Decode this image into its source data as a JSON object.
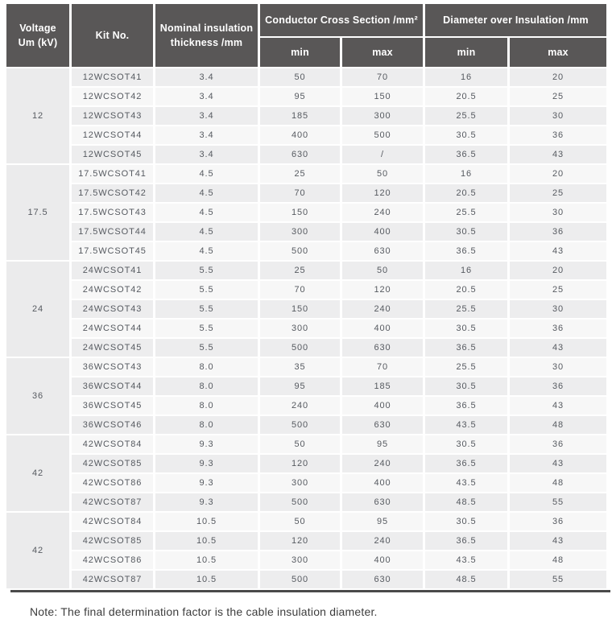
{
  "colors": {
    "header_bg": "#595757",
    "row_odd": "#ededee",
    "row_even": "#f7f7f7",
    "voltage_cell_bg": "#ebebec",
    "bottom_rule": "#4a4a4a",
    "header_text": "#ffffff",
    "cell_text": "#565a60"
  },
  "table": {
    "headers": {
      "voltage": "Voltage\nUm (kV)",
      "kit": "Kit No.",
      "nominal": "Nominal insulation\nthickness /mm",
      "ccs_group": "Conductor Cross Section /mm²",
      "dia_group": "Diameter over Insulation /mm",
      "min": "min",
      "max": "max"
    },
    "groups": [
      {
        "voltage": "12",
        "rows": [
          {
            "kit": "12WCSOT41",
            "thickness": "3.4",
            "ccs_min": "50",
            "ccs_max": "70",
            "dia_min": "16",
            "dia_max": "20"
          },
          {
            "kit": "12WCSOT42",
            "thickness": "3.4",
            "ccs_min": "95",
            "ccs_max": "150",
            "dia_min": "20.5",
            "dia_max": "25"
          },
          {
            "kit": "12WCSOT43",
            "thickness": "3.4",
            "ccs_min": "185",
            "ccs_max": "300",
            "dia_min": "25.5",
            "dia_max": "30"
          },
          {
            "kit": "12WCSOT44",
            "thickness": "3.4",
            "ccs_min": "400",
            "ccs_max": "500",
            "dia_min": "30.5",
            "dia_max": "36"
          },
          {
            "kit": "12WCSOT45",
            "thickness": "3.4",
            "ccs_min": "630",
            "ccs_max": "/",
            "dia_min": "36.5",
            "dia_max": "43"
          }
        ]
      },
      {
        "voltage": "17.5",
        "rows": [
          {
            "kit": "17.5WCSOT41",
            "thickness": "4.5",
            "ccs_min": "25",
            "ccs_max": "50",
            "dia_min": "16",
            "dia_max": "20"
          },
          {
            "kit": "17.5WCSOT42",
            "thickness": "4.5",
            "ccs_min": "70",
            "ccs_max": "120",
            "dia_min": "20.5",
            "dia_max": "25"
          },
          {
            "kit": "17.5WCSOT43",
            "thickness": "4.5",
            "ccs_min": "150",
            "ccs_max": "240",
            "dia_min": "25.5",
            "dia_max": "30"
          },
          {
            "kit": "17.5WCSOT44",
            "thickness": "4.5",
            "ccs_min": "300",
            "ccs_max": "400",
            "dia_min": "30.5",
            "dia_max": "36"
          },
          {
            "kit": "17.5WCSOT45",
            "thickness": "4.5",
            "ccs_min": "500",
            "ccs_max": "630",
            "dia_min": "36.5",
            "dia_max": "43"
          }
        ]
      },
      {
        "voltage": "24",
        "rows": [
          {
            "kit": "24WCSOT41",
            "thickness": "5.5",
            "ccs_min": "25",
            "ccs_max": "50",
            "dia_min": "16",
            "dia_max": "20"
          },
          {
            "kit": "24WCSOT42",
            "thickness": "5.5",
            "ccs_min": "70",
            "ccs_max": "120",
            "dia_min": "20.5",
            "dia_max": "25"
          },
          {
            "kit": "24WCSOT43",
            "thickness": "5.5",
            "ccs_min": "150",
            "ccs_max": "240",
            "dia_min": "25.5",
            "dia_max": "30"
          },
          {
            "kit": "24WCSOT44",
            "thickness": "5.5",
            "ccs_min": "300",
            "ccs_max": "400",
            "dia_min": "30.5",
            "dia_max": "36"
          },
          {
            "kit": "24WCSOT45",
            "thickness": "5.5",
            "ccs_min": "500",
            "ccs_max": "630",
            "dia_min": "36.5",
            "dia_max": "43"
          }
        ]
      },
      {
        "voltage": "36",
        "rows": [
          {
            "kit": "36WCSOT43",
            "thickness": "8.0",
            "ccs_min": "35",
            "ccs_max": "70",
            "dia_min": "25.5",
            "dia_max": "30"
          },
          {
            "kit": "36WCSOT44",
            "thickness": "8.0",
            "ccs_min": "95",
            "ccs_max": "185",
            "dia_min": "30.5",
            "dia_max": "36"
          },
          {
            "kit": "36WCSOT45",
            "thickness": "8.0",
            "ccs_min": "240",
            "ccs_max": "400",
            "dia_min": "36.5",
            "dia_max": "43"
          },
          {
            "kit": "36WCSOT46",
            "thickness": "8.0",
            "ccs_min": "500",
            "ccs_max": "630",
            "dia_min": "43.5",
            "dia_max": "48"
          }
        ]
      },
      {
        "voltage": "42",
        "rows": [
          {
            "kit": "42WCSOT84",
            "thickness": "9.3",
            "ccs_min": "50",
            "ccs_max": "95",
            "dia_min": "30.5",
            "dia_max": "36"
          },
          {
            "kit": "42WCSOT85",
            "thickness": "9.3",
            "ccs_min": "120",
            "ccs_max": "240",
            "dia_min": "36.5",
            "dia_max": "43"
          },
          {
            "kit": "42WCSOT86",
            "thickness": "9.3",
            "ccs_min": "300",
            "ccs_max": "400",
            "dia_min": "43.5",
            "dia_max": "48"
          },
          {
            "kit": "42WCSOT87",
            "thickness": "9.3",
            "ccs_min": "500",
            "ccs_max": "630",
            "dia_min": "48.5",
            "dia_max": "55"
          }
        ]
      },
      {
        "voltage": "42",
        "rows": [
          {
            "kit": "42WCSOT84",
            "thickness": "10.5",
            "ccs_min": "50",
            "ccs_max": "95",
            "dia_min": "30.5",
            "dia_max": "36"
          },
          {
            "kit": "42WCSOT85",
            "thickness": "10.5",
            "ccs_min": "120",
            "ccs_max": "240",
            "dia_min": "36.5",
            "dia_max": "43"
          },
          {
            "kit": "42WCSOT86",
            "thickness": "10.5",
            "ccs_min": "300",
            "ccs_max": "400",
            "dia_min": "43.5",
            "dia_max": "48"
          },
          {
            "kit": "42WCSOT87",
            "thickness": "10.5",
            "ccs_min": "500",
            "ccs_max": "630",
            "dia_min": "48.5",
            "dia_max": "55"
          }
        ]
      }
    ]
  },
  "note": "Note: The final determination factor is the cable insulation diameter."
}
